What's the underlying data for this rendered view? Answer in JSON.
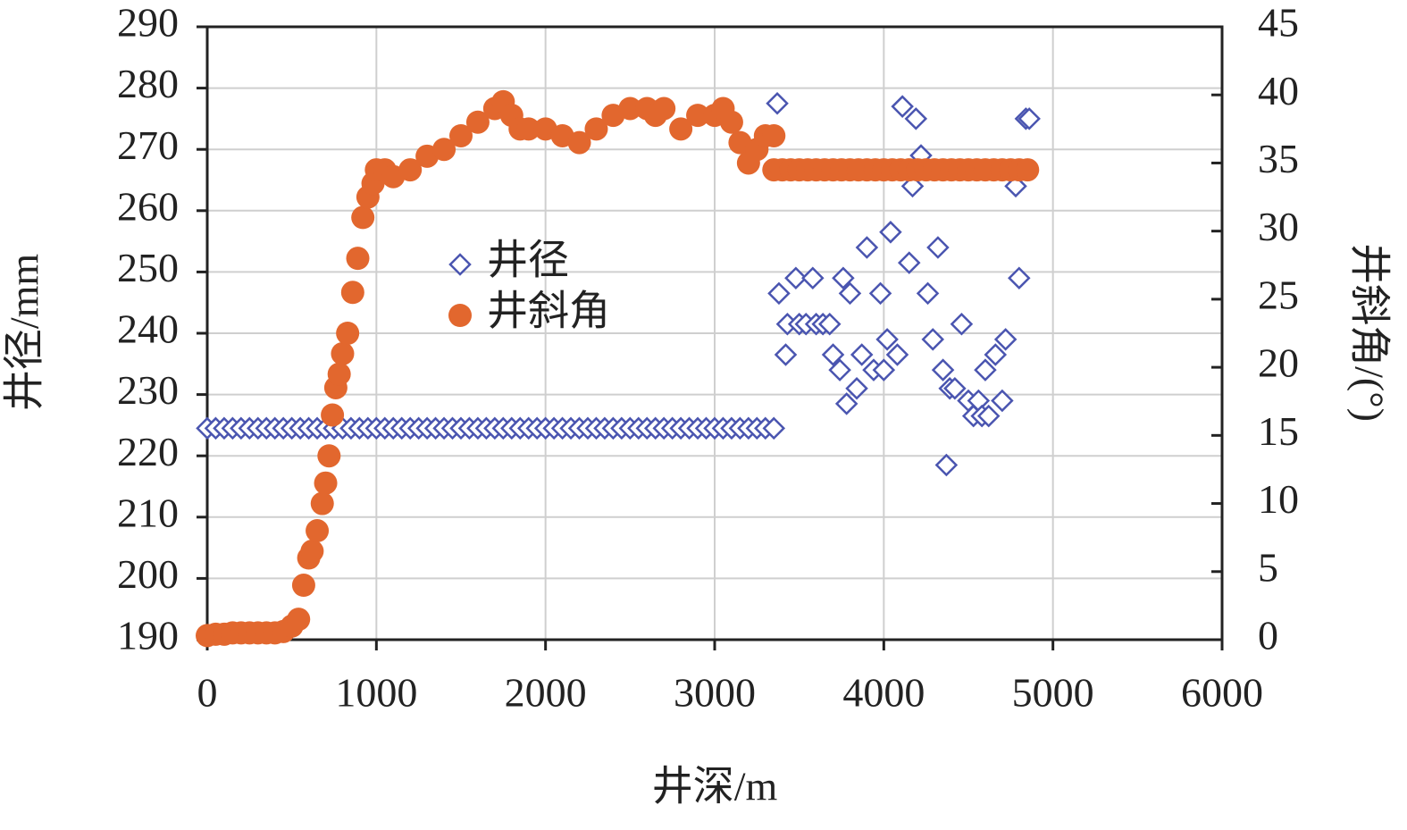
{
  "chart_data": {
    "type": "scatter",
    "xlabel": "井深/m",
    "ylabel": "井径/mm",
    "y2label": "井斜角/(°)",
    "xlim": [
      0,
      6000
    ],
    "xticks": [
      0,
      1000,
      2000,
      3000,
      4000,
      5000,
      6000
    ],
    "ylim": [
      190,
      290
    ],
    "yticks": [
      190,
      200,
      210,
      220,
      230,
      240,
      250,
      260,
      270,
      280,
      290
    ],
    "y2lim": [
      0,
      45
    ],
    "y2ticks": [
      0,
      5,
      10,
      15,
      20,
      25,
      30,
      35,
      40,
      45
    ],
    "grid": true,
    "series": [
      {
        "name": "井径",
        "color": "#4a55b0",
        "marker": "diamond-open",
        "x": [
          0,
          50,
          100,
          150,
          200,
          250,
          300,
          350,
          400,
          450,
          500,
          550,
          600,
          650,
          700,
          750,
          800,
          850,
          900,
          950,
          1000,
          1050,
          1100,
          1150,
          1200,
          1250,
          1300,
          1350,
          1400,
          1450,
          1500,
          1550,
          1600,
          1650,
          1700,
          1750,
          1800,
          1850,
          1900,
          1950,
          2000,
          2050,
          2100,
          2150,
          2200,
          2250,
          2300,
          2350,
          2400,
          2450,
          2500,
          2550,
          2600,
          2650,
          2700,
          2750,
          2800,
          2850,
          2900,
          2950,
          3000,
          3050,
          3100,
          3150,
          3200,
          3250,
          3300,
          3350,
          3370,
          3380,
          3420,
          3430,
          3480,
          3500,
          3540,
          3580,
          3600,
          3640,
          3680,
          3700,
          3740,
          3760,
          3780,
          3800,
          3840,
          3870,
          3900,
          3940,
          3980,
          4000,
          4020,
          4040,
          4080,
          4110,
          4150,
          4170,
          4190,
          4220,
          4260,
          4290,
          4320,
          4350,
          4370,
          4390,
          4420,
          4460,
          4500,
          4530,
          4560,
          4580,
          4600,
          4620,
          4660,
          4700,
          4720,
          4780,
          4800,
          4840,
          4860
        ],
        "values": [
          224.5,
          224.5,
          224.5,
          224.5,
          224.5,
          224.5,
          224.5,
          224.5,
          224.5,
          224.5,
          224.5,
          224.5,
          224.5,
          224.5,
          224.5,
          224.5,
          224.5,
          224.5,
          224.5,
          224.5,
          224.5,
          224.5,
          224.5,
          224.5,
          224.5,
          224.5,
          224.5,
          224.5,
          224.5,
          224.5,
          224.5,
          224.5,
          224.5,
          224.5,
          224.5,
          224.5,
          224.5,
          224.5,
          224.5,
          224.5,
          224.5,
          224.5,
          224.5,
          224.5,
          224.5,
          224.5,
          224.5,
          224.5,
          224.5,
          224.5,
          224.5,
          224.5,
          224.5,
          224.5,
          224.5,
          224.5,
          224.5,
          224.5,
          224.5,
          224.5,
          224.5,
          224.5,
          224.5,
          224.5,
          224.5,
          224.5,
          224.5,
          224.5,
          277.5,
          246.5,
          236.5,
          241.5,
          249,
          241.5,
          241.5,
          249,
          241.5,
          241.5,
          241.5,
          236.5,
          234,
          249,
          228.5,
          246.5,
          231,
          236.5,
          254,
          234,
          246.5,
          234,
          239,
          256.5,
          236.5,
          277,
          251.5,
          264,
          275,
          269,
          246.5,
          239,
          254,
          234,
          218.5,
          231,
          231,
          241.5,
          229,
          226.5,
          229,
          226.5,
          234,
          226.5,
          236.5,
          229,
          239,
          264,
          249,
          275,
          275
        ]
      },
      {
        "name": "井斜角",
        "color": "#e2672e",
        "marker": "circle",
        "axis": "y2",
        "x": [
          0,
          50,
          100,
          150,
          200,
          250,
          300,
          350,
          400,
          450,
          500,
          540,
          570,
          600,
          620,
          650,
          680,
          700,
          720,
          740,
          760,
          780,
          800,
          830,
          860,
          890,
          920,
          950,
          980,
          1000,
          1050,
          1100,
          1200,
          1300,
          1400,
          1500,
          1600,
          1700,
          1750,
          1800,
          1850,
          1900,
          2000,
          2100,
          2200,
          2300,
          2400,
          2500,
          2600,
          2650,
          2700,
          2800,
          2900,
          3000,
          3050,
          3100,
          3150,
          3200,
          3250,
          3300,
          3350,
          3350,
          3400,
          3450,
          3500,
          3550,
          3600,
          3650,
          3700,
          3750,
          3800,
          3850,
          3900,
          3950,
          4000,
          4050,
          4100,
          4150,
          4200,
          4250,
          4300,
          4350,
          4400,
          4450,
          4500,
          4550,
          4600,
          4650,
          4700,
          4750,
          4800,
          4850
        ],
        "values": [
          0.3,
          0.4,
          0.4,
          0.5,
          0.5,
          0.5,
          0.5,
          0.5,
          0.5,
          0.6,
          1,
          1.5,
          4,
          6,
          6.5,
          8,
          10,
          11.5,
          13.5,
          16.5,
          18.5,
          19.5,
          21,
          22.5,
          25.5,
          28,
          31,
          32.5,
          33.5,
          34.5,
          34.5,
          34,
          34.5,
          35.5,
          36,
          37,
          38,
          39,
          39.5,
          38.5,
          37.5,
          37.5,
          37.5,
          37,
          36.5,
          37.5,
          38.5,
          39,
          39,
          38.5,
          39,
          37.5,
          38.5,
          38.5,
          39,
          38,
          36.5,
          35,
          36,
          37,
          37,
          34.5,
          34.5,
          34.5,
          34.5,
          34.5,
          34.5,
          34.5,
          34.5,
          34.5,
          34.5,
          34.5,
          34.5,
          34.5,
          34.5,
          34.5,
          34.5,
          34.5,
          34.5,
          34.5,
          34.5,
          34.5,
          34.5,
          34.5,
          34.5,
          34.5,
          34.5,
          34.5,
          34.5,
          34.5,
          34.5,
          34.5
        ]
      }
    ]
  }
}
